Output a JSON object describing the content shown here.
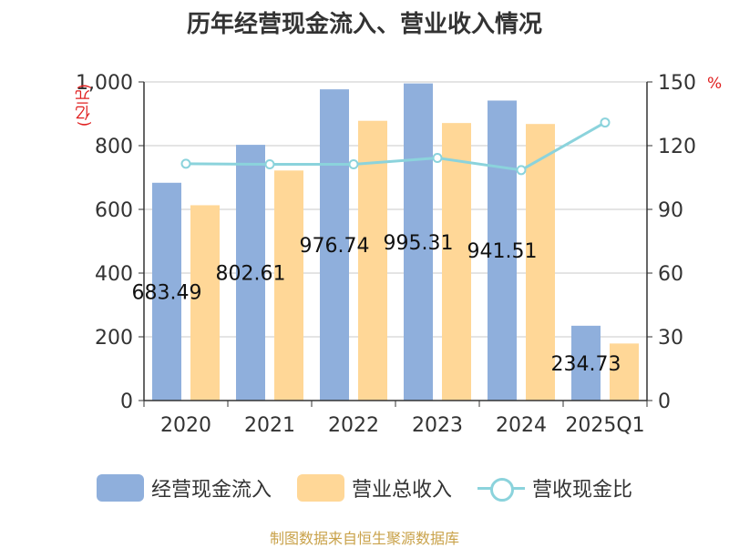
{
  "title": "历年经营现金流入、营业收入情况",
  "source": "制图数据来自恒生聚源数据库",
  "legend": [
    {
      "label": "经营现金流入",
      "color": "#8fafdc"
    },
    {
      "label": "营业总收入",
      "color": "#ffd797"
    },
    {
      "label": "营收现金比",
      "color": "#8bd3dc"
    }
  ],
  "chart_data": {
    "type": "bar",
    "title": "历年经营现金流入、营业收入情况",
    "categories": [
      "2020",
      "2021",
      "2022",
      "2023",
      "2024",
      "2025Q1"
    ],
    "series": [
      {
        "name": "经营现金流入",
        "type": "bar",
        "axis": "left",
        "color": "#8fafdc",
        "values": [
          683.49,
          802.61,
          976.74,
          995.31,
          941.51,
          234.73
        ],
        "labels": [
          "683.49",
          "802.61",
          "976.74",
          "995.31",
          "941.51",
          "234.73"
        ]
      },
      {
        "name": "营业总收入",
        "type": "bar",
        "axis": "left",
        "color": "#ffd797",
        "values": [
          613,
          722,
          878,
          871,
          868,
          179
        ]
      },
      {
        "name": "营收现金比",
        "type": "line",
        "axis": "right",
        "color": "#8bd3dc",
        "values": [
          111.5,
          111.2,
          111.2,
          114.2,
          108.5,
          130.9
        ]
      }
    ],
    "y_left": {
      "label": "(亿元)",
      "ylim": [
        0,
        1000
      ],
      "ticks": [
        "0",
        "200",
        "400",
        "600",
        "800",
        "1,000"
      ]
    },
    "y_right": {
      "label": "%",
      "ylim": [
        0,
        150
      ],
      "ticks": [
        "0",
        "30",
        "60",
        "90",
        "120",
        "150"
      ]
    },
    "grid": true,
    "legend_position": "bottom"
  }
}
